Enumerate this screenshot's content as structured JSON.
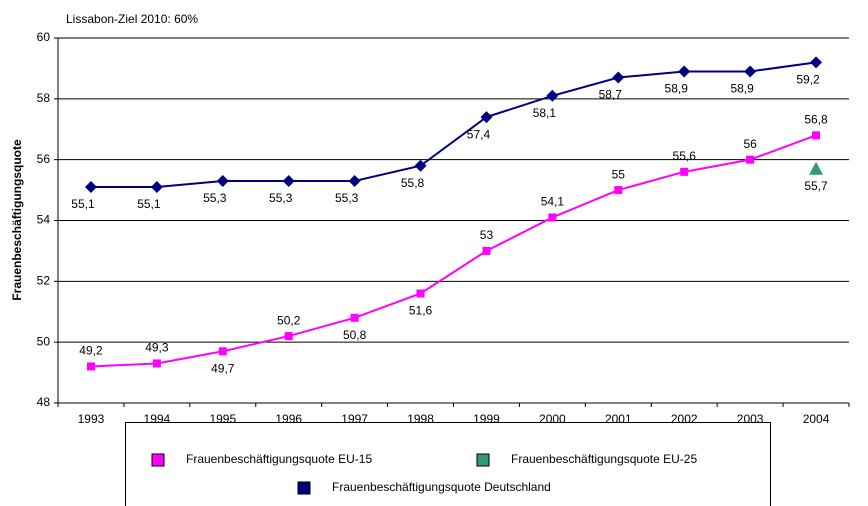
{
  "chart_data": {
    "type": "line",
    "annotation": "Lissabon-Ziel 2010: 60%",
    "y_label": "Frauenbeschäftigungsquote",
    "categories": [
      "1993",
      "1994",
      "1995",
      "1996",
      "1997",
      "1998",
      "1999",
      "2000",
      "2001",
      "2002",
      "2003",
      "2004"
    ],
    "series": [
      {
        "name": "Frauenbeschäftigungsquote EU-15",
        "color": "#ff00ff",
        "marker": "square",
        "values": [
          49.2,
          49.3,
          49.7,
          50.2,
          50.8,
          51.6,
          53,
          54.1,
          55,
          55.6,
          56,
          56.8
        ],
        "value_labels": [
          "49,2",
          "49,3",
          "49,7",
          "50,2",
          "50,8",
          "51,6",
          "53",
          "54,1",
          "55",
          "55,6",
          "56",
          "56,8"
        ]
      },
      {
        "name": "Frauenbeschäftigungsquote EU-25",
        "color": "#339977",
        "marker": "triangle",
        "values": [
          null,
          null,
          null,
          null,
          null,
          null,
          null,
          null,
          null,
          null,
          null,
          55.7
        ],
        "value_labels": [
          null,
          null,
          null,
          null,
          null,
          null,
          null,
          null,
          null,
          null,
          null,
          "55,7"
        ]
      },
      {
        "name": "Frauenbeschäftigungsquote Deutschland",
        "color": "#000080",
        "marker": "diamond",
        "values": [
          55.1,
          55.1,
          55.3,
          55.3,
          55.3,
          55.8,
          57.4,
          58.1,
          58.7,
          58.9,
          58.9,
          59.2
        ],
        "value_labels": [
          "55,1",
          "55,1",
          "55,3",
          "55,3",
          "55,3",
          "55,8",
          "57,4",
          "58,1",
          "58,7",
          "58,9",
          "58,9",
          "59,2"
        ]
      }
    ],
    "ylim": [
      48,
      60
    ],
    "yticks": [
      48,
      50,
      52,
      54,
      56,
      58,
      60
    ],
    "grid": true
  }
}
